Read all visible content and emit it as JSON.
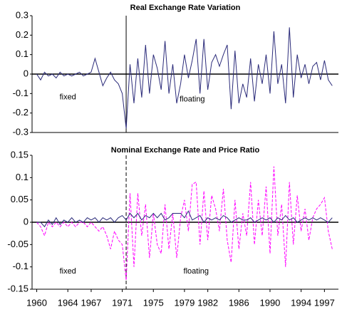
{
  "chart_data": [
    {
      "type": "line",
      "title": "Real Exchange Rate Variation",
      "x": [
        1960,
        1960.5,
        1961,
        1961.5,
        1962,
        1962.5,
        1963,
        1963.5,
        1964,
        1964.5,
        1965,
        1965.5,
        1966,
        1966.5,
        1967,
        1967.5,
        1968,
        1968.5,
        1969,
        1969.5,
        1970,
        1970.5,
        1971,
        1971.5,
        1972,
        1972.5,
        1973,
        1973.5,
        1974,
        1974.5,
        1975,
        1975.5,
        1976,
        1976.5,
        1977,
        1977.5,
        1978,
        1978.5,
        1979,
        1979.5,
        1980,
        1980.5,
        1981,
        1981.5,
        1982,
        1982.5,
        1983,
        1983.5,
        1984,
        1984.5,
        1985,
        1985.5,
        1986,
        1986.5,
        1987,
        1987.5,
        1988,
        1988.5,
        1989,
        1989.5,
        1990,
        1990.5,
        1991,
        1991.5,
        1992,
        1992.5,
        1993,
        1993.5,
        1994,
        1994.5,
        1995,
        1995.5,
        1996,
        1996.5,
        1997,
        1997.5,
        1998
      ],
      "series": [
        {
          "color": "#2b2b7a",
          "dash": false,
          "values": [
            0,
            -0.03,
            0.01,
            -0.01,
            0,
            -0.02,
            0.01,
            -0.01,
            0,
            -0.01,
            0,
            0.01,
            -0.01,
            0,
            0.01,
            0.08,
            0.01,
            -0.06,
            -0.02,
            0.01,
            -0.03,
            -0.05,
            -0.1,
            -0.28,
            0.05,
            -0.15,
            0.08,
            -0.12,
            0.15,
            -0.1,
            0.1,
            0.03,
            -0.08,
            0.17,
            -0.1,
            0.05,
            -0.15,
            -0.05,
            0.1,
            -0.02,
            0.07,
            0.18,
            -0.1,
            0.18,
            -0.08,
            0.06,
            0.1,
            0.04,
            0.1,
            0.15,
            -0.18,
            0.12,
            -0.15,
            -0.05,
            -0.12,
            0.08,
            -0.14,
            0.05,
            -0.05,
            0.1,
            -0.1,
            0.22,
            -0.05,
            0.05,
            -0.15,
            0.24,
            -0.12,
            0.1,
            -0.02,
            0.05,
            -0.05,
            0.04,
            0.06,
            -0.03,
            0.07,
            -0.03,
            -0.06
          ]
        }
      ],
      "xlim": [
        1959.4,
        1998.8
      ],
      "ylim": [
        -0.3,
        0.3
      ],
      "yticks": [
        0.3,
        0.2,
        0.1,
        0,
        -0.1,
        -0.2,
        -0.3
      ],
      "vline": 1971.5,
      "vline_dash": false,
      "annotations": [
        {
          "text": "fixed",
          "x": 1964,
          "y": -0.12
        },
        {
          "text": "floating",
          "x": 1980,
          "y": -0.13
        }
      ]
    },
    {
      "type": "line",
      "title": "Nominal Exchange Rate and Price Ratio",
      "x": [
        1960,
        1960.5,
        1961,
        1961.5,
        1962,
        1962.5,
        1963,
        1963.5,
        1964,
        1964.5,
        1965,
        1965.5,
        1966,
        1966.5,
        1967,
        1967.5,
        1968,
        1968.5,
        1969,
        1969.5,
        1970,
        1970.5,
        1971,
        1971.5,
        1972,
        1972.5,
        1973,
        1973.5,
        1974,
        1974.5,
        1975,
        1975.5,
        1976,
        1976.5,
        1977,
        1977.5,
        1978,
        1978.5,
        1979,
        1979.5,
        1980,
        1980.5,
        1981,
        1981.5,
        1982,
        1982.5,
        1983,
        1983.5,
        1984,
        1984.5,
        1985,
        1985.5,
        1986,
        1986.5,
        1987,
        1987.5,
        1988,
        1988.5,
        1989,
        1989.5,
        1990,
        1990.5,
        1991,
        1991.5,
        1992,
        1992.5,
        1993,
        1993.5,
        1994,
        1994.5,
        1995,
        1995.5,
        1996,
        1996.5,
        1997,
        1997.5,
        1998
      ],
      "series": [
        {
          "color": "#ff00ff",
          "dash": true,
          "values": [
            0,
            -0.01,
            -0.03,
            0,
            -0.01,
            0,
            -0.01,
            0,
            -0.01,
            0,
            -0.01,
            0,
            0,
            -0.01,
            0,
            -0.01,
            -0.02,
            -0.01,
            -0.03,
            -0.06,
            -0.02,
            -0.04,
            -0.05,
            -0.13,
            0.065,
            -0.1,
            0.065,
            -0.03,
            0.04,
            -0.08,
            0.02,
            -0.05,
            -0.07,
            0.04,
            -0.06,
            0.02,
            -0.08,
            0.01,
            0.05,
            -0.02,
            0.085,
            0.09,
            -0.05,
            0.07,
            -0.04,
            0.06,
            0.03,
            -0.02,
            0.075,
            -0.04,
            -0.09,
            0.05,
            -0.06,
            0.02,
            -0.03,
            0.09,
            -0.05,
            0.05,
            -0.03,
            0.08,
            -0.07,
            0.125,
            -0.03,
            0.04,
            -0.1,
            0.09,
            -0.05,
            0.06,
            -0.02,
            0.03,
            -0.04,
            0.01,
            0.03,
            0.04,
            0.055,
            -0.02,
            -0.06
          ]
        },
        {
          "color": "#2b2b7a",
          "dash": false,
          "values": [
            0,
            0,
            -0.01,
            0.005,
            -0.005,
            0.01,
            -0.005,
            0.005,
            0,
            0.01,
            0,
            0.005,
            0,
            0.01,
            0.005,
            0.01,
            0,
            0.01,
            0.005,
            0.01,
            0,
            0.01,
            0.015,
            0.005,
            0.02,
            0.01,
            0.02,
            0.005,
            0.015,
            0.01,
            0.02,
            0.01,
            0.02,
            0.005,
            0.01,
            0.02,
            0.02,
            0.02,
            0.01,
            0.025,
            0.005,
            0.01,
            0.015,
            0,
            0.01,
            0.005,
            0.01,
            0.005,
            0.015,
            0.01,
            0,
            0.005,
            0.01,
            0.005,
            0.005,
            0.01,
            0,
            0.005,
            0.01,
            0.005,
            0.01,
            0,
            0.01,
            0.005,
            0.015,
            0.005,
            0.01,
            0,
            0.005,
            0.01,
            0.005,
            0.01,
            0.005,
            0.01,
            0.005,
            0,
            0.01
          ]
        }
      ],
      "xlim": [
        1959.4,
        1998.8
      ],
      "xticks": [
        1960,
        1964,
        1967,
        1971,
        1975,
        1979,
        1982,
        1986,
        1990,
        1994,
        1997
      ],
      "ylim": [
        -0.15,
        0.15
      ],
      "yticks": [
        0.15,
        0.1,
        0.05,
        0,
        -0.05,
        -0.1,
        -0.15
      ],
      "vline": 1971.5,
      "vline_dash": true,
      "annotations": [
        {
          "text": "fixed",
          "x": 1964,
          "y": -0.11
        },
        {
          "text": "floating",
          "x": 1980.5,
          "y": -0.11
        }
      ]
    }
  ]
}
